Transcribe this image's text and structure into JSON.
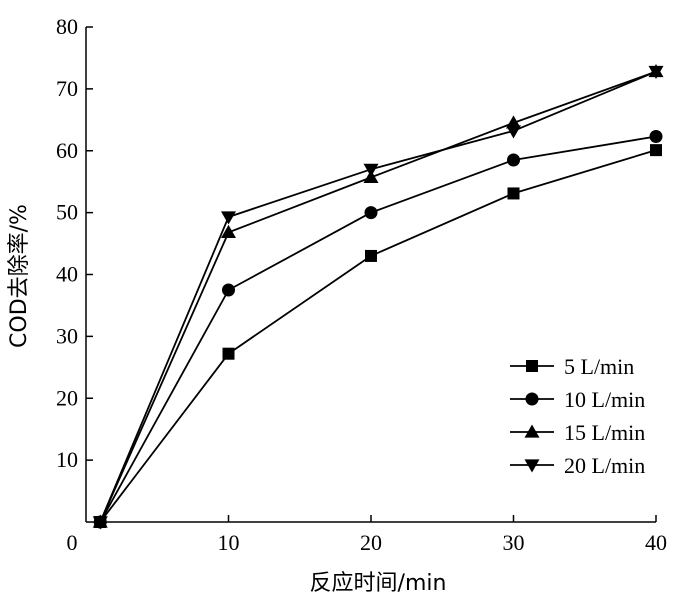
{
  "chart_data": {
    "type": "line",
    "xlabel": "反应时间/min",
    "ylabel": "COD去除率/%",
    "xlim": [
      0,
      40
    ],
    "ylim": [
      0,
      80
    ],
    "x_ticks": [
      "0",
      "10",
      "20",
      "30",
      "40"
    ],
    "y_ticks": [
      "10",
      "20",
      "30",
      "40",
      "50",
      "60",
      "70",
      "80"
    ],
    "grid": false,
    "legend_position": "bottom-right",
    "series": [
      {
        "name": "5 L/min",
        "marker": "square",
        "x": [
          1,
          10,
          20,
          30,
          40
        ],
        "y": [
          0,
          27.2,
          43.0,
          53.1,
          60.1
        ]
      },
      {
        "name": "10 L/min",
        "marker": "circle",
        "x": [
          1,
          10,
          20,
          30,
          40
        ],
        "y": [
          0,
          37.5,
          50.0,
          58.5,
          62.3
        ]
      },
      {
        "name": "15 L/min",
        "marker": "triangle-up",
        "x": [
          1,
          10,
          20,
          30,
          40
        ],
        "y": [
          0,
          46.8,
          55.7,
          64.5,
          72.8
        ]
      },
      {
        "name": "20 L/min",
        "marker": "triangle-down",
        "x": [
          1,
          10,
          20,
          30,
          40
        ],
        "y": [
          0,
          49.3,
          57.0,
          63.2,
          72.8
        ]
      }
    ]
  }
}
